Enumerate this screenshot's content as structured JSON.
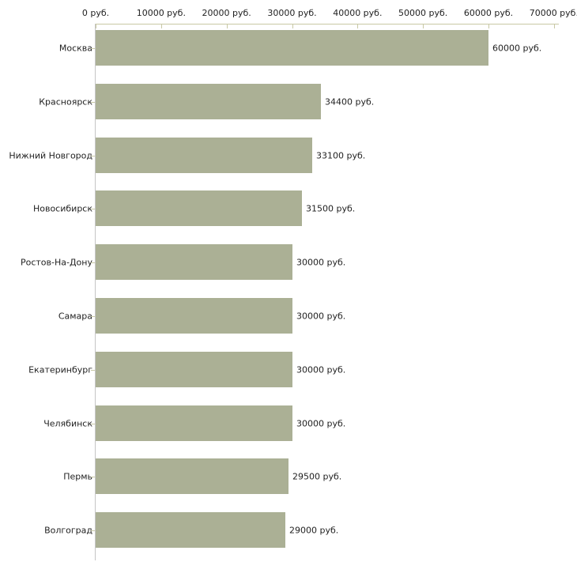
{
  "chart_data": {
    "type": "bar",
    "orientation": "horizontal",
    "title": "",
    "xlabel": "",
    "ylabel": "",
    "unit": "руб.",
    "grid": false,
    "legend": null,
    "xlim": [
      0,
      70000
    ],
    "categories": [
      "Москва",
      "Красноярск",
      "Нижний Новгород",
      "Новосибирск",
      "Ростов-На-Дону",
      "Самара",
      "Екатеринбург",
      "Челябинск",
      "Пермь",
      "Волгоград"
    ],
    "values": [
      60000,
      34400,
      33100,
      31500,
      30000,
      30000,
      30000,
      30000,
      29500,
      29000
    ],
    "value_labels": [
      "60000 руб.",
      "34400 руб.",
      "33100 руб.",
      "31500 руб.",
      "30000 руб.",
      "30000 руб.",
      "30000 руб.",
      "30000 руб.",
      "29500 руб.",
      "29000 руб."
    ],
    "x_ticks": [
      0,
      10000,
      20000,
      30000,
      40000,
      50000,
      60000,
      70000
    ],
    "x_tick_labels": [
      "0 руб.",
      "10000 руб.",
      "20000 руб.",
      "30000 руб.",
      "40000 руб.",
      "50000 руб.",
      "60000 руб.",
      "70000 руб."
    ],
    "colors": {
      "bar": "#abb095",
      "axis": "#c8c8a5",
      "axis_vertical": "#c6c6c6",
      "text": "#222222",
      "background": "#ffffff"
    }
  }
}
